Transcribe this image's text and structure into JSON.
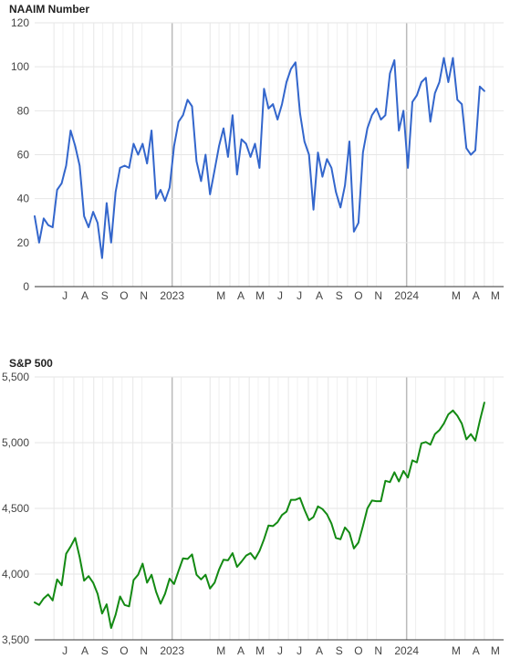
{
  "colors": {
    "naaim_line": "#3366cc",
    "sp500_line": "#138a13",
    "grid": "#e6e6e6",
    "year_divider": "#bbbbbb",
    "axis": "#333333"
  },
  "chart_data": [
    {
      "type": "line",
      "title": "NAAIM Number",
      "xlabel": "",
      "ylabel": "",
      "ylim": [
        0,
        120
      ],
      "yticks": [
        0,
        20,
        40,
        60,
        80,
        100,
        120
      ],
      "ytick_labels": [
        "0",
        "20",
        "40",
        "60",
        "80",
        "100",
        "120"
      ],
      "grid": true,
      "x_start": "2022-06-01",
      "x_end": "2024-05-31",
      "x_tick_labels": [
        {
          "date": "2022-07-01",
          "label": "J"
        },
        {
          "date": "2022-08-01",
          "label": "A"
        },
        {
          "date": "2022-09-01",
          "label": "S"
        },
        {
          "date": "2022-10-01",
          "label": "O"
        },
        {
          "date": "2022-11-01",
          "label": "N"
        },
        {
          "date": "2023-01-01",
          "label": "2023"
        },
        {
          "date": "2023-03-01",
          "label": "M"
        },
        {
          "date": "2023-04-01",
          "label": "A"
        },
        {
          "date": "2023-05-01",
          "label": "M"
        },
        {
          "date": "2023-06-01",
          "label": "J"
        },
        {
          "date": "2023-07-01",
          "label": "J"
        },
        {
          "date": "2023-08-01",
          "label": "A"
        },
        {
          "date": "2023-09-01",
          "label": "S"
        },
        {
          "date": "2023-10-01",
          "label": "O"
        },
        {
          "date": "2023-11-01",
          "label": "N"
        },
        {
          "date": "2024-01-01",
          "label": "2024"
        },
        {
          "date": "2024-03-01",
          "label": "M"
        },
        {
          "date": "2024-04-01",
          "label": "A"
        },
        {
          "date": "2024-05-01",
          "label": "M"
        }
      ],
      "year_dividers": [
        "2023-01-01",
        "2024-01-01"
      ],
      "series": [
        {
          "color": "#3366cc",
          "points": [
            [
              "2022-06-01",
              32
            ],
            [
              "2022-06-08",
              20
            ],
            [
              "2022-06-15",
              31
            ],
            [
              "2022-06-22",
              28
            ],
            [
              "2022-06-29",
              27
            ],
            [
              "2022-07-06",
              44
            ],
            [
              "2022-07-13",
              47
            ],
            [
              "2022-07-20",
              55
            ],
            [
              "2022-07-27",
              71
            ],
            [
              "2022-08-03",
              64
            ],
            [
              "2022-08-10",
              55
            ],
            [
              "2022-08-17",
              32
            ],
            [
              "2022-08-24",
              27
            ],
            [
              "2022-08-31",
              34
            ],
            [
              "2022-09-07",
              29
            ],
            [
              "2022-09-14",
              13
            ],
            [
              "2022-09-21",
              38
            ],
            [
              "2022-09-28",
              20
            ],
            [
              "2022-10-05",
              43
            ],
            [
              "2022-10-12",
              54
            ],
            [
              "2022-10-19",
              55
            ],
            [
              "2022-10-26",
              54
            ],
            [
              "2022-11-02",
              65
            ],
            [
              "2022-11-09",
              60
            ],
            [
              "2022-11-16",
              65
            ],
            [
              "2022-11-23",
              56
            ],
            [
              "2022-11-30",
              71
            ],
            [
              "2022-12-07",
              40
            ],
            [
              "2022-12-14",
              44
            ],
            [
              "2022-12-21",
              39
            ],
            [
              "2022-12-28",
              45
            ],
            [
              "2023-01-04",
              64
            ],
            [
              "2023-01-11",
              75
            ],
            [
              "2023-01-18",
              78
            ],
            [
              "2023-01-25",
              85
            ],
            [
              "2023-02-01",
              82
            ],
            [
              "2023-02-08",
              57
            ],
            [
              "2023-02-15",
              48
            ],
            [
              "2023-02-22",
              60
            ],
            [
              "2023-03-01",
              42
            ],
            [
              "2023-03-08",
              53
            ],
            [
              "2023-03-15",
              64
            ],
            [
              "2023-03-22",
              72
            ],
            [
              "2023-03-29",
              59
            ],
            [
              "2023-04-05",
              78
            ],
            [
              "2023-04-12",
              51
            ],
            [
              "2023-04-19",
              67
            ],
            [
              "2023-04-26",
              65
            ],
            [
              "2023-05-03",
              59
            ],
            [
              "2023-05-10",
              65
            ],
            [
              "2023-05-17",
              54
            ],
            [
              "2023-05-24",
              90
            ],
            [
              "2023-05-31",
              81
            ],
            [
              "2023-06-07",
              83
            ],
            [
              "2023-06-14",
              76
            ],
            [
              "2023-06-21",
              83
            ],
            [
              "2023-06-28",
              93
            ],
            [
              "2023-07-05",
              99
            ],
            [
              "2023-07-12",
              102
            ],
            [
              "2023-07-19",
              79
            ],
            [
              "2023-07-26",
              66
            ],
            [
              "2023-08-02",
              60
            ],
            [
              "2023-08-09",
              35
            ],
            [
              "2023-08-16",
              61
            ],
            [
              "2023-08-23",
              50
            ],
            [
              "2023-08-30",
              58
            ],
            [
              "2023-09-06",
              54
            ],
            [
              "2023-09-13",
              43
            ],
            [
              "2023-09-20",
              36
            ],
            [
              "2023-09-27",
              46
            ],
            [
              "2023-10-04",
              66
            ],
            [
              "2023-10-11",
              25
            ],
            [
              "2023-10-18",
              29
            ],
            [
              "2023-10-25",
              61
            ],
            [
              "2023-11-01",
              72
            ],
            [
              "2023-11-08",
              78
            ],
            [
              "2023-11-15",
              81
            ],
            [
              "2023-11-22",
              76
            ],
            [
              "2023-11-29",
              78
            ],
            [
              "2023-12-06",
              97
            ],
            [
              "2023-12-13",
              103
            ],
            [
              "2023-12-20",
              71
            ],
            [
              "2023-12-27",
              80
            ],
            [
              "2024-01-03",
              54
            ],
            [
              "2024-01-10",
              84
            ],
            [
              "2024-01-17",
              87
            ],
            [
              "2024-01-24",
              93
            ],
            [
              "2024-01-31",
              95
            ],
            [
              "2024-02-07",
              75
            ],
            [
              "2024-02-14",
              88
            ],
            [
              "2024-02-21",
              93
            ],
            [
              "2024-02-28",
              104
            ],
            [
              "2024-03-06",
              93
            ],
            [
              "2024-03-13",
              104
            ],
            [
              "2024-03-20",
              85
            ],
            [
              "2024-03-27",
              83
            ],
            [
              "2024-04-03",
              63
            ],
            [
              "2024-04-10",
              60
            ],
            [
              "2024-04-17",
              62
            ],
            [
              "2024-04-24",
              91
            ],
            [
              "2024-05-01",
              89
            ]
          ]
        }
      ]
    },
    {
      "type": "line",
      "title": "S&P 500",
      "xlabel": "",
      "ylabel": "",
      "ylim": [
        3500,
        5500
      ],
      "yticks": [
        3500,
        4000,
        4500,
        5000,
        5500
      ],
      "ytick_labels": [
        "3,500",
        "4,000",
        "4,500",
        "5,000",
        "5,500"
      ],
      "grid": true,
      "x_start": "2022-06-01",
      "x_end": "2024-05-31",
      "x_tick_labels": [
        {
          "date": "2022-07-01",
          "label": "J"
        },
        {
          "date": "2022-08-01",
          "label": "A"
        },
        {
          "date": "2022-09-01",
          "label": "S"
        },
        {
          "date": "2022-10-01",
          "label": "O"
        },
        {
          "date": "2022-11-01",
          "label": "N"
        },
        {
          "date": "2023-01-01",
          "label": "2023"
        },
        {
          "date": "2023-03-01",
          "label": "M"
        },
        {
          "date": "2023-04-01",
          "label": "A"
        },
        {
          "date": "2023-05-01",
          "label": "M"
        },
        {
          "date": "2023-06-01",
          "label": "J"
        },
        {
          "date": "2023-07-01",
          "label": "J"
        },
        {
          "date": "2023-08-01",
          "label": "A"
        },
        {
          "date": "2023-09-01",
          "label": "S"
        },
        {
          "date": "2023-10-01",
          "label": "O"
        },
        {
          "date": "2023-11-01",
          "label": "N"
        },
        {
          "date": "2024-01-01",
          "label": "2024"
        },
        {
          "date": "2024-03-01",
          "label": "M"
        },
        {
          "date": "2024-04-01",
          "label": "A"
        },
        {
          "date": "2024-05-01",
          "label": "M"
        }
      ],
      "year_dividers": [
        "2023-01-01",
        "2024-01-01"
      ],
      "series": [
        {
          "color": "#138a13",
          "points": [
            [
              "2022-06-01",
              3785
            ],
            [
              "2022-06-08",
              3765
            ],
            [
              "2022-06-15",
              3815
            ],
            [
              "2022-06-22",
              3845
            ],
            [
              "2022-06-29",
              3800
            ],
            [
              "2022-07-06",
              3960
            ],
            [
              "2022-07-13",
              3915
            ],
            [
              "2022-07-20",
              4155
            ],
            [
              "2022-07-27",
              4210
            ],
            [
              "2022-08-03",
              4275
            ],
            [
              "2022-08-10",
              4130
            ],
            [
              "2022-08-17",
              3950
            ],
            [
              "2022-08-24",
              3985
            ],
            [
              "2022-08-31",
              3935
            ],
            [
              "2022-09-07",
              3850
            ],
            [
              "2022-09-14",
              3700
            ],
            [
              "2022-09-21",
              3770
            ],
            [
              "2022-09-28",
              3590
            ],
            [
              "2022-10-05",
              3690
            ],
            [
              "2022-10-12",
              3830
            ],
            [
              "2022-10-19",
              3765
            ],
            [
              "2022-10-26",
              3755
            ],
            [
              "2022-11-02",
              3955
            ],
            [
              "2022-11-09",
              3995
            ],
            [
              "2022-11-16",
              4080
            ],
            [
              "2022-11-23",
              3935
            ],
            [
              "2022-11-30",
              3995
            ],
            [
              "2022-12-07",
              3865
            ],
            [
              "2022-12-14",
              3775
            ],
            [
              "2022-12-21",
              3850
            ],
            [
              "2022-12-28",
              3965
            ],
            [
              "2023-01-04",
              3925
            ],
            [
              "2023-01-11",
              4025
            ],
            [
              "2023-01-18",
              4120
            ],
            [
              "2023-01-25",
              4115
            ],
            [
              "2023-02-01",
              4150
            ],
            [
              "2023-02-08",
              3995
            ],
            [
              "2023-02-15",
              3960
            ],
            [
              "2023-02-22",
              3995
            ],
            [
              "2023-03-01",
              3890
            ],
            [
              "2023-03-08",
              3935
            ],
            [
              "2023-03-15",
              4035
            ],
            [
              "2023-03-22",
              4110
            ],
            [
              "2023-03-29",
              4105
            ],
            [
              "2023-04-05",
              4160
            ],
            [
              "2023-04-12",
              4055
            ],
            [
              "2023-04-19",
              4095
            ],
            [
              "2023-04-26",
              4140
            ],
            [
              "2023-05-03",
              4160
            ],
            [
              "2023-05-10",
              4115
            ],
            [
              "2023-05-17",
              4175
            ],
            [
              "2023-05-24",
              4265
            ],
            [
              "2023-05-31",
              4370
            ],
            [
              "2023-06-07",
              4365
            ],
            [
              "2023-06-14",
              4395
            ],
            [
              "2023-06-21",
              4450
            ],
            [
              "2023-06-28",
              4475
            ],
            [
              "2023-07-05",
              4565
            ],
            [
              "2023-07-12",
              4565
            ],
            [
              "2023-07-19",
              4580
            ],
            [
              "2023-07-26",
              4490
            ],
            [
              "2023-08-02",
              4410
            ],
            [
              "2023-08-09",
              4435
            ],
            [
              "2023-08-16",
              4515
            ],
            [
              "2023-08-23",
              4495
            ],
            [
              "2023-08-30",
              4455
            ],
            [
              "2023-09-06",
              4385
            ],
            [
              "2023-09-13",
              4275
            ],
            [
              "2023-09-20",
              4265
            ],
            [
              "2023-09-27",
              4355
            ],
            [
              "2023-10-04",
              4315
            ],
            [
              "2023-10-11",
              4195
            ],
            [
              "2023-10-18",
              4240
            ],
            [
              "2023-10-25",
              4365
            ],
            [
              "2023-11-01",
              4500
            ],
            [
              "2023-11-08",
              4560
            ],
            [
              "2023-11-15",
              4555
            ],
            [
              "2023-11-22",
              4555
            ],
            [
              "2023-11-29",
              4710
            ],
            [
              "2023-12-06",
              4700
            ],
            [
              "2023-12-13",
              4775
            ],
            [
              "2023-12-20",
              4705
            ],
            [
              "2023-12-27",
              4785
            ],
            [
              "2024-01-03",
              4735
            ],
            [
              "2024-01-10",
              4865
            ],
            [
              "2024-01-17",
              4850
            ],
            [
              "2024-01-24",
              4995
            ],
            [
              "2024-01-31",
              5005
            ],
            [
              "2024-02-07",
              4985
            ],
            [
              "2024-02-14",
              5065
            ],
            [
              "2024-02-21",
              5095
            ],
            [
              "2024-02-28",
              5145
            ],
            [
              "2024-03-06",
              5215
            ],
            [
              "2024-03-13",
              5245
            ],
            [
              "2024-03-20",
              5205
            ],
            [
              "2024-03-27",
              5145
            ],
            [
              "2024-04-03",
              5025
            ],
            [
              "2024-04-10",
              5065
            ],
            [
              "2024-04-17",
              5015
            ],
            [
              "2024-04-24",
              5165
            ],
            [
              "2024-05-01",
              5305
            ]
          ]
        }
      ]
    }
  ]
}
